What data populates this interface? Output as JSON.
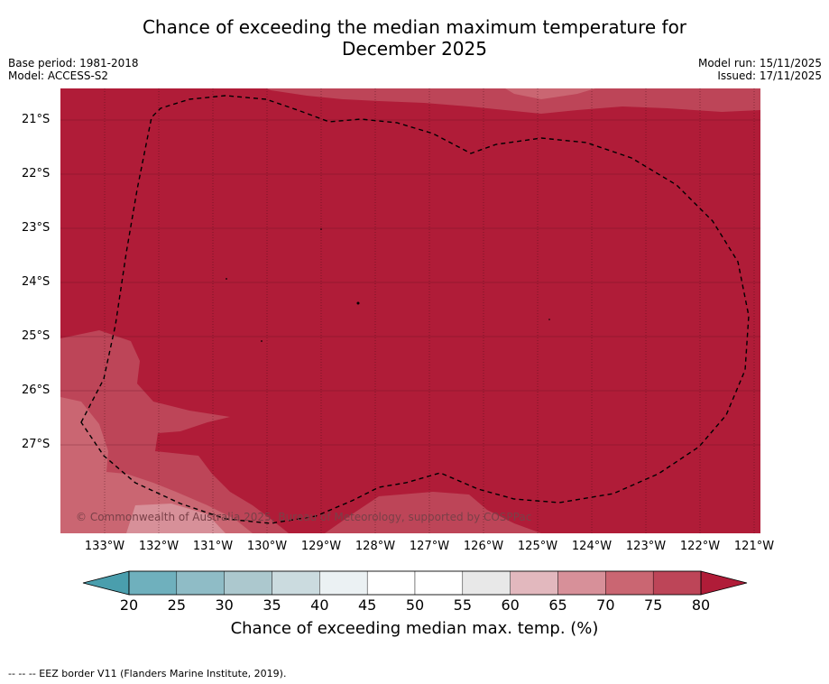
{
  "title_line1": "Chance of exceeding the median maximum temperature for",
  "title_line2": "December 2025",
  "meta": {
    "base_period": "Base period: 1981-2018",
    "model": "Model: ACCESS-S2",
    "model_run": "Model run: 15/11/2025",
    "issued": "Issued: 17/11/2025"
  },
  "map": {
    "copyright": "© Commonwealth of Australia 2025, Bureau of Meteorology, supported by COSPPac",
    "lat_labels": [
      "21°S",
      "22°S",
      "23°S",
      "24°S",
      "25°S",
      "26°S",
      "27°S"
    ],
    "lon_labels": [
      "133°W",
      "132°W",
      "131°W",
      "130°W",
      "129°W",
      "128°W",
      "127°W",
      "126°W",
      "125°W",
      "124°W",
      "123°W",
      "122°W",
      "121°W"
    ],
    "eez_border": "dashed"
  },
  "colorbar": {
    "ticks": [
      "20",
      "25",
      "30",
      "35",
      "40",
      "45",
      "50",
      "55",
      "60",
      "65",
      "70",
      "75",
      "80"
    ],
    "colors": [
      "#6fb0bd",
      "#8fbcc6",
      "#acc8ce",
      "#cbdbdf",
      "#ebf1f3",
      "#ffffff",
      "#ffffff",
      "#e8e8e8",
      "#e2b8be",
      "#d79099",
      "#ca6672",
      "#bd4558"
    ],
    "under_color": "#4a9ead",
    "over_color": "#b01c38",
    "label": "Chance of exceeding median max. temp. (%)"
  },
  "footnote": "-- -- -- EEZ border V11 (Flanders Marine Institute, 2019)."
}
